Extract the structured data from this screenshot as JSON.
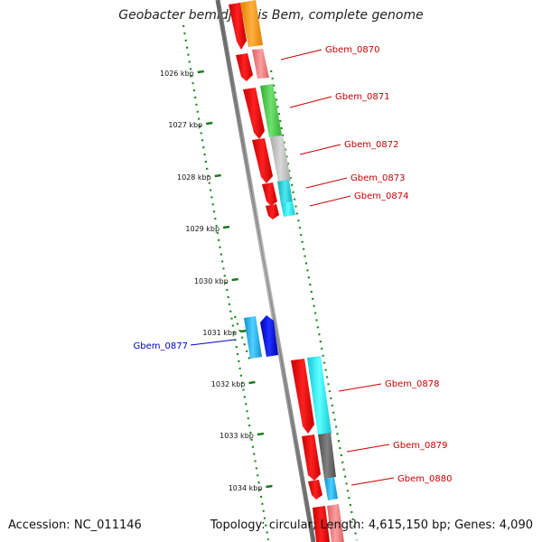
{
  "title": "Geobacter bemidjiensis Bem, complete genome",
  "footer": {
    "accession_label": "Accession:",
    "accession": "NC_011146",
    "topology_label": "Topology:",
    "topology": "circular",
    "length_label": "Length:",
    "length": "4,615,150 bp",
    "genes_label": "Genes:",
    "genes": "4,090"
  },
  "ticks": [
    "1026 kbp",
    "1027 kbp",
    "1028 kbp",
    "1029 kbp",
    "1030 kbp",
    "1031 kbp",
    "1032 kbp",
    "1033 kbp",
    "1034 kbp"
  ],
  "genes": [
    {
      "name": "Gbem_0870",
      "color": "#cc0000"
    },
    {
      "name": "Gbem_0871",
      "color": "#cc0000"
    },
    {
      "name": "Gbem_0872",
      "color": "#cc0000"
    },
    {
      "name": "Gbem_0873",
      "color": "#cc0000"
    },
    {
      "name": "Gbem_0874",
      "color": "#cc0000"
    },
    {
      "name": "Gbem_0877",
      "color": "#0000cc"
    },
    {
      "name": "Gbem_0878",
      "color": "#cc0000"
    },
    {
      "name": "Gbem_0879",
      "color": "#cc0000"
    },
    {
      "name": "Gbem_0880",
      "color": "#cc0000"
    }
  ],
  "colors": {
    "backbone": "#888888",
    "tick_line": "#1a7a1a",
    "cds_forward": "#ee0000",
    "label_red": "#cc0000",
    "label_blue": "#0000cc"
  }
}
